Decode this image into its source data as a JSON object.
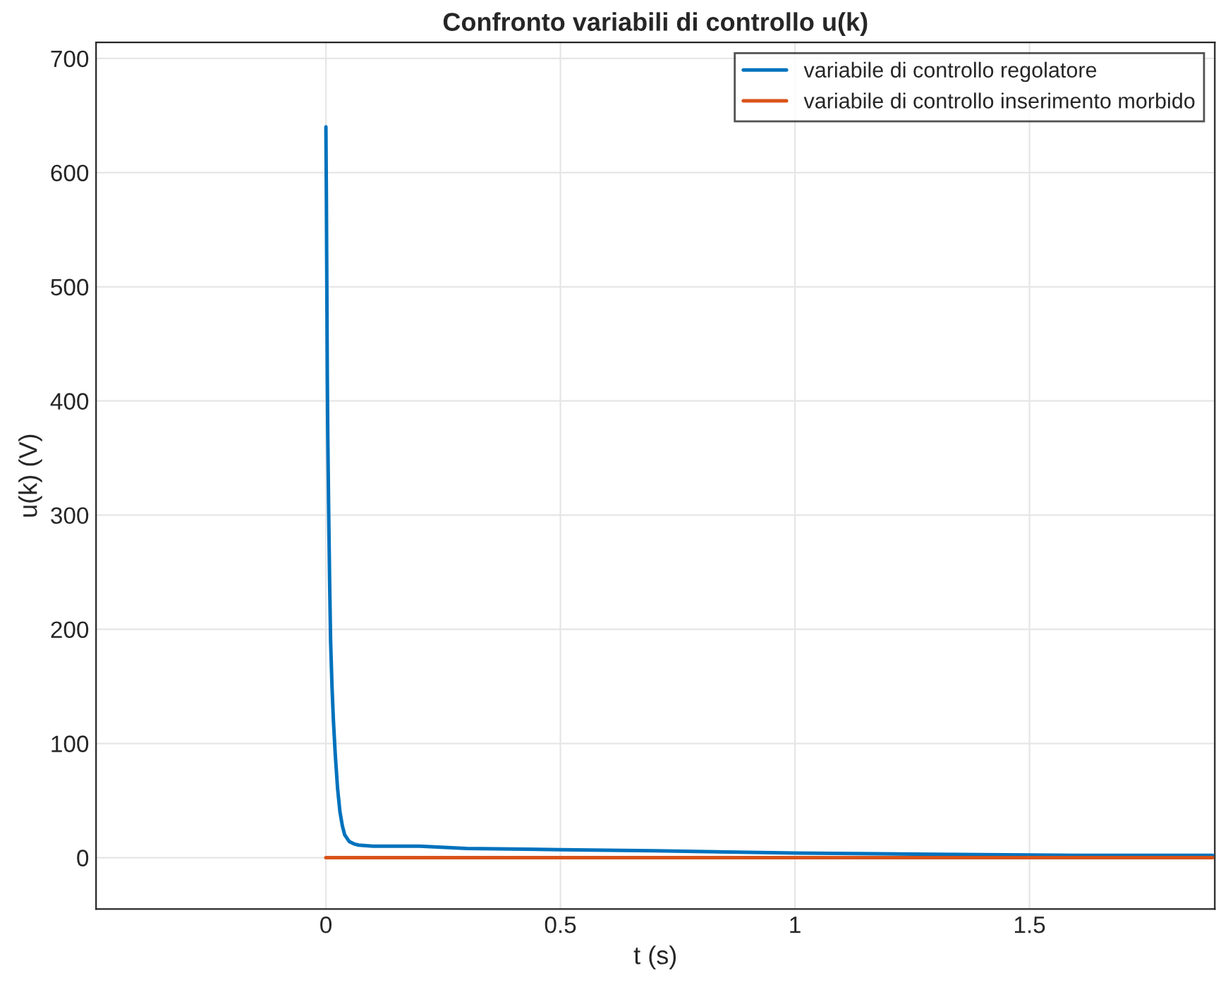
{
  "chart_data": {
    "type": "line",
    "title": "Confronto variabili di controllo u(k)",
    "xlabel": "t (s)",
    "ylabel": "u(k) (V)",
    "series": [
      {
        "name": "variabile di controllo regolatore",
        "color": "#0072bd",
        "x": [
          0,
          0.001,
          0.002,
          0.003,
          0.004,
          0.006,
          0.008,
          0.01,
          0.013,
          0.016,
          0.02,
          0.025,
          0.03,
          0.035,
          0.04,
          0.05,
          0.06,
          0.07,
          0.1,
          0.2,
          0.3,
          0.5,
          0.7,
          1.0,
          1.3,
          1.6,
          1.89
        ],
        "values": [
          640,
          580,
          500,
          420,
          370,
          300,
          240,
          190,
          150,
          120,
          90,
          60,
          40,
          28,
          20,
          14,
          12,
          11,
          10,
          10,
          8,
          7,
          6,
          4,
          3,
          2,
          2
        ]
      },
      {
        "name": "variabile di controllo inserimento morbido",
        "color": "#d95319",
        "x": [
          0,
          1.89
        ],
        "values": [
          0,
          0
        ]
      }
    ],
    "xlim": [
      -0.49,
      1.895
    ],
    "ylim": [
      -45,
      714
    ],
    "xticks": [
      0,
      0.5,
      1,
      1.5
    ],
    "yticks": [
      0,
      100,
      200,
      300,
      400,
      500,
      600,
      700
    ],
    "grid": true,
    "legend": "top right"
  }
}
